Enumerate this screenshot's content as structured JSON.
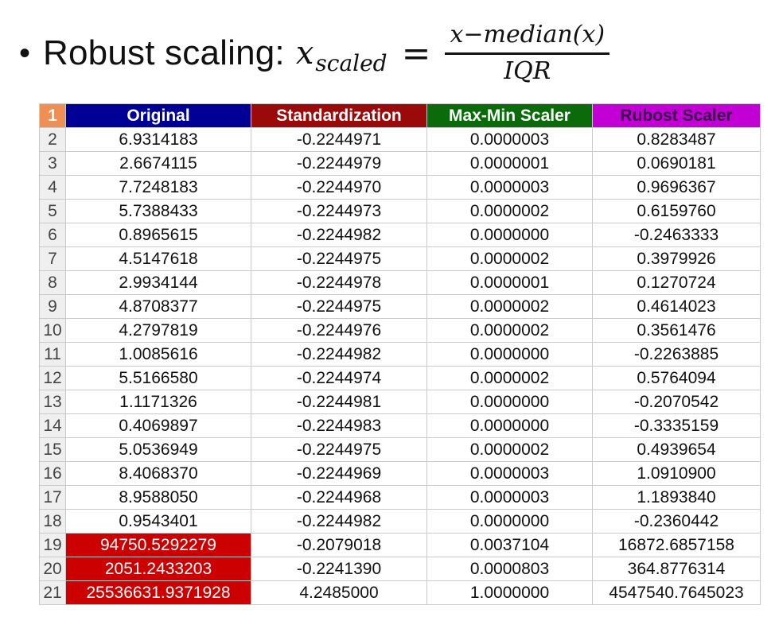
{
  "slide": {
    "bullet": "•",
    "title": "Robust scaling:",
    "formula": {
      "var": "x",
      "sub": "scaled",
      "eq": "=",
      "numerator": "x−median(x)",
      "denominator": "IQR"
    }
  },
  "sheet": {
    "corner": "1",
    "columns": [
      "Original",
      "Standardization",
      "Max-Min Scaler",
      "Rubost Scaler"
    ],
    "header_colors": [
      "#000096",
      "#9b0a0a",
      "#0b6b0b",
      "#c200d6"
    ],
    "highlight_color": "#cc0000",
    "rows": [
      {
        "n": "2",
        "v": [
          "6.9314183",
          "-0.2244971",
          "0.0000003",
          "0.8283487"
        ]
      },
      {
        "n": "3",
        "v": [
          "2.6674115",
          "-0.2244979",
          "0.0000001",
          "0.0690181"
        ]
      },
      {
        "n": "4",
        "v": [
          "7.7248183",
          "-0.2244970",
          "0.0000003",
          "0.9696367"
        ]
      },
      {
        "n": "5",
        "v": [
          "5.7388433",
          "-0.2244973",
          "0.0000002",
          "0.6159760"
        ]
      },
      {
        "n": "6",
        "v": [
          "0.8965615",
          "-0.2244982",
          "0.0000000",
          "-0.2463333"
        ]
      },
      {
        "n": "7",
        "v": [
          "4.5147618",
          "-0.2244975",
          "0.0000002",
          "0.3979926"
        ]
      },
      {
        "n": "8",
        "v": [
          "2.9934144",
          "-0.2244978",
          "0.0000001",
          "0.1270724"
        ]
      },
      {
        "n": "9",
        "v": [
          "4.8708377",
          "-0.2244975",
          "0.0000002",
          "0.4614023"
        ]
      },
      {
        "n": "10",
        "v": [
          "4.2797819",
          "-0.2244976",
          "0.0000002",
          "0.3561476"
        ]
      },
      {
        "n": "11",
        "v": [
          "1.0085616",
          "-0.2244982",
          "0.0000000",
          "-0.2263885"
        ]
      },
      {
        "n": "12",
        "v": [
          "5.5166580",
          "-0.2244974",
          "0.0000002",
          "0.5764094"
        ]
      },
      {
        "n": "13",
        "v": [
          "1.1171326",
          "-0.2244981",
          "0.0000000",
          "-0.2070542"
        ]
      },
      {
        "n": "14",
        "v": [
          "0.4069897",
          "-0.2244983",
          "0.0000000",
          "-0.3335159"
        ]
      },
      {
        "n": "15",
        "v": [
          "5.0536949",
          "-0.2244975",
          "0.0000002",
          "0.4939654"
        ]
      },
      {
        "n": "16",
        "v": [
          "8.4068370",
          "-0.2244969",
          "0.0000003",
          "1.0910900"
        ]
      },
      {
        "n": "17",
        "v": [
          "8.9588050",
          "-0.2244968",
          "0.0000003",
          "1.1893840"
        ]
      },
      {
        "n": "18",
        "v": [
          "0.9543401",
          "-0.2244982",
          "0.0000000",
          "-0.2360442"
        ]
      },
      {
        "n": "19",
        "v": [
          "94750.5292279",
          "-0.2079018",
          "0.0037104",
          "16872.6857158"
        ],
        "highlight": true
      },
      {
        "n": "20",
        "v": [
          "2051.2433203",
          "-0.2241390",
          "0.0000803",
          "364.8776314"
        ],
        "highlight": true
      },
      {
        "n": "21",
        "v": [
          "25536631.9371928",
          "4.2485000",
          "1.0000000",
          "4547540.7645023"
        ],
        "highlight": true
      }
    ]
  }
}
